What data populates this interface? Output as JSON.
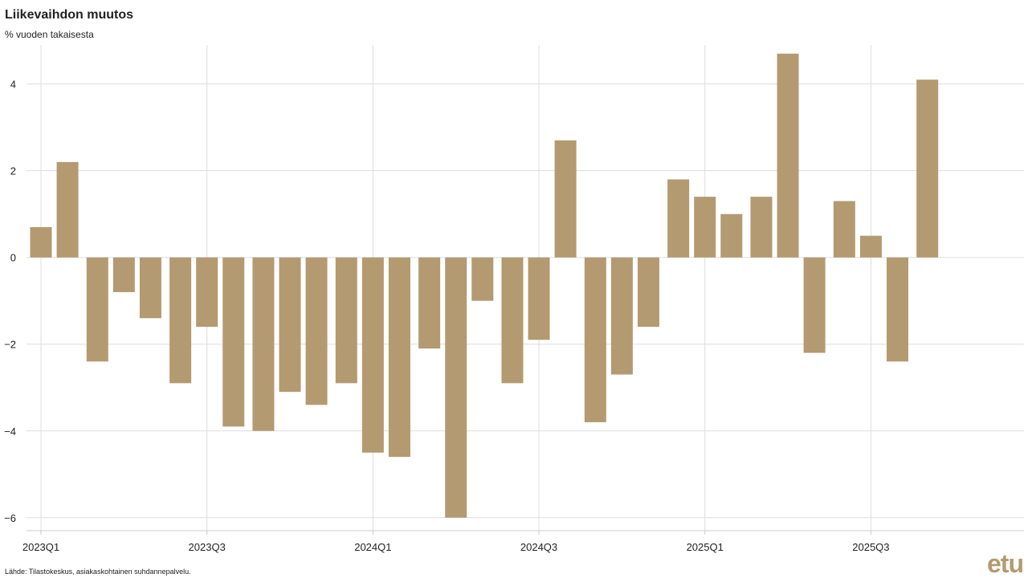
{
  "header": {
    "title": "Liikevaihdon muutos",
    "subtitle": "% vuoden takaisesta"
  },
  "footer": {
    "source": "Lähde: Tilastokeskus, asiakaskohtainen suhdannepalvelu.",
    "logo_text": "etu"
  },
  "colors": {
    "bar": "#b39a70",
    "grid": "#dddddd",
    "axis": "#cccccc",
    "text": "#222222"
  },
  "chart_data": {
    "type": "bar",
    "title": "Liikevaihdon muutos",
    "subtitle": "% vuoden takaisesta",
    "ylim": [
      -6.3,
      4.9
    ],
    "yticks": [
      -6,
      -4,
      -2,
      0,
      2,
      4
    ],
    "xlim": [
      2023.0,
      2025.92
    ],
    "xticks": [
      {
        "label": "2023Q1",
        "x": 2023.0
      },
      {
        "label": "2023Q3",
        "x": 2023.5
      },
      {
        "label": "2024Q1",
        "x": 2024.0
      },
      {
        "label": "2024Q3",
        "x": 2024.5
      },
      {
        "label": "2025Q1",
        "x": 2025.0
      },
      {
        "label": "2025Q3",
        "x": 2025.5
      }
    ],
    "grid": true,
    "bars": [
      {
        "x": 2023.0,
        "value": 0.7
      },
      {
        "x": 2023.08,
        "value": 2.2
      },
      {
        "x": 2023.17,
        "value": -2.4
      },
      {
        "x": 2023.25,
        "value": -0.8
      },
      {
        "x": 2023.33,
        "value": -1.4
      },
      {
        "x": 2023.42,
        "value": -2.9
      },
      {
        "x": 2023.5,
        "value": -1.6
      },
      {
        "x": 2023.58,
        "value": -3.9
      },
      {
        "x": 2023.67,
        "value": -4.0
      },
      {
        "x": 2023.75,
        "value": -3.1
      },
      {
        "x": 2023.83,
        "value": -3.4
      },
      {
        "x": 2023.92,
        "value": -2.9
      },
      {
        "x": 2024.0,
        "value": -4.5
      },
      {
        "x": 2024.08,
        "value": -4.6
      },
      {
        "x": 2024.17,
        "value": -2.1
      },
      {
        "x": 2024.25,
        "value": -6.0
      },
      {
        "x": 2024.33,
        "value": -1.0
      },
      {
        "x": 2024.42,
        "value": -2.9
      },
      {
        "x": 2024.5,
        "value": -1.9
      },
      {
        "x": 2024.58,
        "value": 2.7
      },
      {
        "x": 2024.67,
        "value": -3.8
      },
      {
        "x": 2024.75,
        "value": -2.7
      },
      {
        "x": 2024.83,
        "value": -1.6
      },
      {
        "x": 2024.92,
        "value": 1.8
      },
      {
        "x": 2025.0,
        "value": 1.4
      },
      {
        "x": 2025.08,
        "value": 1.0
      },
      {
        "x": 2025.17,
        "value": 1.4
      },
      {
        "x": 2025.25,
        "value": 4.7
      },
      {
        "x": 2025.33,
        "value": -2.2
      },
      {
        "x": 2025.42,
        "value": 1.3
      },
      {
        "x": 2025.5,
        "value": 0.5
      },
      {
        "x": 2025.58,
        "value": -2.4
      },
      {
        "x": 2025.67,
        "value": 4.1
      }
    ]
  }
}
